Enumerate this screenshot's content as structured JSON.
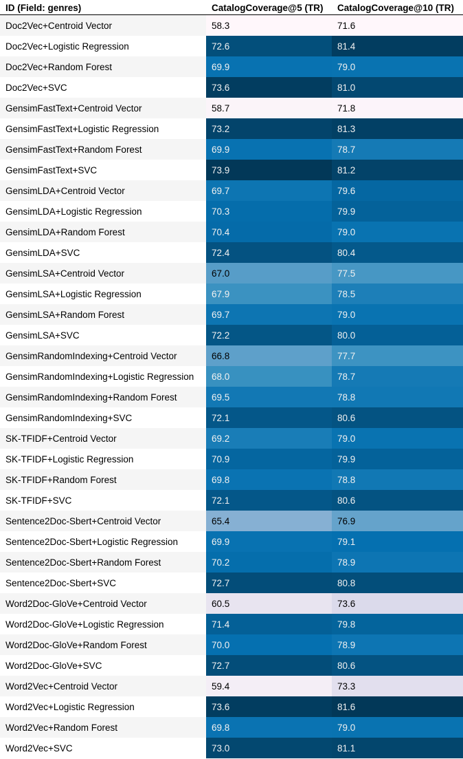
{
  "table": {
    "headers": [
      "ID (Field: genres)",
      "CatalogCoverage@5 (TR)",
      "CatalogCoverage@10 (TR)"
    ],
    "rows": [
      {
        "id": "Doc2Vec+Centroid Vector",
        "c5": "58.3",
        "c10": "71.6"
      },
      {
        "id": "Doc2Vec+Logistic Regression",
        "c5": "72.6",
        "c10": "81.4"
      },
      {
        "id": "Doc2Vec+Random Forest",
        "c5": "69.9",
        "c10": "79.0"
      },
      {
        "id": "Doc2Vec+SVC",
        "c5": "73.6",
        "c10": "81.0"
      },
      {
        "id": "GensimFastText+Centroid Vector",
        "c5": "58.7",
        "c10": "71.8"
      },
      {
        "id": "GensimFastText+Logistic Regression",
        "c5": "73.2",
        "c10": "81.3"
      },
      {
        "id": "GensimFastText+Random Forest",
        "c5": "69.9",
        "c10": "78.7"
      },
      {
        "id": "GensimFastText+SVC",
        "c5": "73.9",
        "c10": "81.2"
      },
      {
        "id": "GensimLDA+Centroid Vector",
        "c5": "69.7",
        "c10": "79.6"
      },
      {
        "id": "GensimLDA+Logistic Regression",
        "c5": "70.3",
        "c10": "79.9"
      },
      {
        "id": "GensimLDA+Random Forest",
        "c5": "70.4",
        "c10": "79.0"
      },
      {
        "id": "GensimLDA+SVC",
        "c5": "72.4",
        "c10": "80.4"
      },
      {
        "id": "GensimLSA+Centroid Vector",
        "c5": "67.0",
        "c10": "77.5"
      },
      {
        "id": "GensimLSA+Logistic Regression",
        "c5": "67.9",
        "c10": "78.5"
      },
      {
        "id": "GensimLSA+Random Forest",
        "c5": "69.7",
        "c10": "79.0"
      },
      {
        "id": "GensimLSA+SVC",
        "c5": "72.2",
        "c10": "80.0"
      },
      {
        "id": "GensimRandomIndexing+Centroid Vector",
        "c5": "66.8",
        "c10": "77.7"
      },
      {
        "id": "GensimRandomIndexing+Logistic Regression",
        "c5": "68.0",
        "c10": "78.7"
      },
      {
        "id": "GensimRandomIndexing+Random Forest",
        "c5": "69.5",
        "c10": "78.8"
      },
      {
        "id": "GensimRandomIndexing+SVC",
        "c5": "72.1",
        "c10": "80.6"
      },
      {
        "id": "SK-TFIDF+Centroid Vector",
        "c5": "69.2",
        "c10": "79.0"
      },
      {
        "id": "SK-TFIDF+Logistic Regression",
        "c5": "70.9",
        "c10": "79.9"
      },
      {
        "id": "SK-TFIDF+Random Forest",
        "c5": "69.8",
        "c10": "78.8"
      },
      {
        "id": "SK-TFIDF+SVC",
        "c5": "72.1",
        "c10": "80.6"
      },
      {
        "id": "Sentence2Doc-Sbert+Centroid Vector",
        "c5": "65.4",
        "c10": "76.9"
      },
      {
        "id": "Sentence2Doc-Sbert+Logistic Regression",
        "c5": "69.9",
        "c10": "79.1"
      },
      {
        "id": "Sentence2Doc-Sbert+Random Forest",
        "c5": "70.2",
        "c10": "78.9"
      },
      {
        "id": "Sentence2Doc-Sbert+SVC",
        "c5": "72.7",
        "c10": "80.8"
      },
      {
        "id": "Word2Doc-GloVe+Centroid Vector",
        "c5": "60.5",
        "c10": "73.6"
      },
      {
        "id": "Word2Doc-GloVe+Logistic Regression",
        "c5": "71.4",
        "c10": "79.8"
      },
      {
        "id": "Word2Doc-GloVe+Random Forest",
        "c5": "70.0",
        "c10": "78.9"
      },
      {
        "id": "Word2Doc-GloVe+SVC",
        "c5": "72.7",
        "c10": "80.6"
      },
      {
        "id": "Word2Vec+Centroid Vector",
        "c5": "59.4",
        "c10": "73.3"
      },
      {
        "id": "Word2Vec+Logistic Regression",
        "c5": "73.6",
        "c10": "81.6"
      },
      {
        "id": "Word2Vec+Random Forest",
        "c5": "69.8",
        "c10": "79.0"
      },
      {
        "id": "Word2Vec+SVC",
        "c5": "73.0",
        "c10": "81.1"
      }
    ]
  },
  "colors": {
    "header_border": "#000000",
    "id_row_odd": "#f5f5f5",
    "id_row_even": "#ffffff",
    "heatmap_stops": [
      "#fff7fb",
      "#ece7f2",
      "#d0d1e6",
      "#a6bddb",
      "#74a9cf",
      "#3690c0",
      "#0570b0",
      "#045a8d",
      "#023858"
    ]
  }
}
